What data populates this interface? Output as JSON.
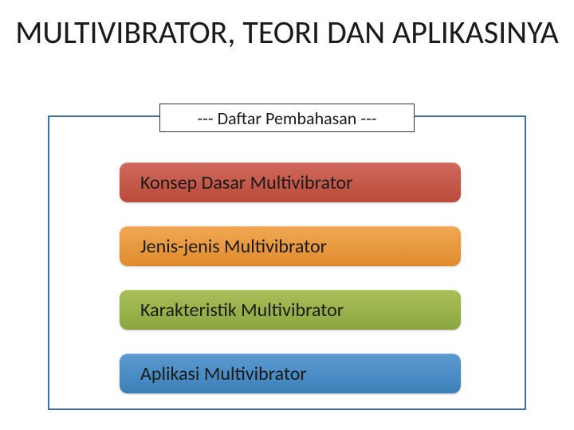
{
  "title": "MULTIVIBRATOR, TEORI DAN APLIKASINYA",
  "subtitle": "--- Daftar Pembahasan ---",
  "outer_border_color": "#3a6ea5",
  "background_color": "#ffffff",
  "title_fontsize": 40,
  "subtitle_fontsize": 22,
  "pill_fontsize": 24,
  "items": [
    {
      "label": "Konsep Dasar Multivibrator",
      "bg_top": "#d06a5c",
      "bg_bottom": "#b94a3a"
    },
    {
      "label": "Jenis-jenis Multivibrator",
      "bg_top": "#f0a952",
      "bg_bottom": "#e08a2e"
    },
    {
      "label": "Karakteristik Multivibrator",
      "bg_top": "#a9bf5a",
      "bg_bottom": "#8ba63e"
    },
    {
      "label": "Aplikasi Multivibrator",
      "bg_top": "#5c9bd1",
      "bg_bottom": "#3d7fb8"
    }
  ]
}
